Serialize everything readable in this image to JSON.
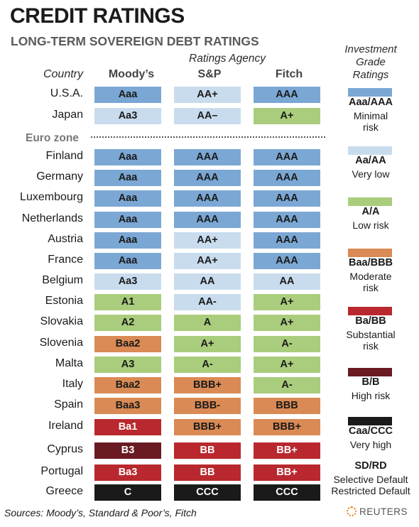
{
  "chart_data": {
    "type": "table",
    "title": "CREDIT RATINGS",
    "subtitle": "LONG-TERM SOVEREIGN DEBT RATINGS",
    "agency_header": "Ratings Agency",
    "country_header": "Country",
    "columns": [
      "Moody’s",
      "S&P",
      "Fitch"
    ],
    "group_label": "Euro zone",
    "rows": [
      {
        "country": "U.S.A.",
        "ratings": [
          "Aaa",
          "AA+",
          "AAA"
        ],
        "levels": [
          0,
          1,
          0
        ]
      },
      {
        "country": "Japan",
        "ratings": [
          "Aa3",
          "AA–",
          "A+"
        ],
        "levels": [
          1,
          1,
          2
        ]
      },
      {
        "country": "Finland",
        "ratings": [
          "Aaa",
          "AAA",
          "AAA"
        ],
        "levels": [
          0,
          0,
          0
        ]
      },
      {
        "country": "Germany",
        "ratings": [
          "Aaa",
          "AAA",
          "AAA"
        ],
        "levels": [
          0,
          0,
          0
        ]
      },
      {
        "country": "Luxembourg",
        "ratings": [
          "Aaa",
          "AAA",
          "AAA"
        ],
        "levels": [
          0,
          0,
          0
        ]
      },
      {
        "country": "Netherlands",
        "ratings": [
          "Aaa",
          "AAA",
          "AAA"
        ],
        "levels": [
          0,
          0,
          0
        ]
      },
      {
        "country": "Austria",
        "ratings": [
          "Aaa",
          "AA+",
          "AAA"
        ],
        "levels": [
          0,
          1,
          0
        ]
      },
      {
        "country": "France",
        "ratings": [
          "Aaa",
          "AA+",
          "AAA"
        ],
        "levels": [
          0,
          1,
          0
        ]
      },
      {
        "country": "Belgium",
        "ratings": [
          "Aa3",
          "AA",
          "AA"
        ],
        "levels": [
          1,
          1,
          1
        ]
      },
      {
        "country": "Estonia",
        "ratings": [
          "A1",
          "AA-",
          "A+"
        ],
        "levels": [
          2,
          1,
          2
        ]
      },
      {
        "country": "Slovakia",
        "ratings": [
          "A2",
          "A",
          "A+"
        ],
        "levels": [
          2,
          2,
          2
        ]
      },
      {
        "country": "Slovenia",
        "ratings": [
          "Baa2",
          "A+",
          "A-"
        ],
        "levels": [
          3,
          2,
          2
        ]
      },
      {
        "country": "Malta",
        "ratings": [
          "A3",
          "A-",
          "A+"
        ],
        "levels": [
          2,
          2,
          2
        ]
      },
      {
        "country": "Italy",
        "ratings": [
          "Baa2",
          "BBB+",
          "A-"
        ],
        "levels": [
          3,
          3,
          2
        ]
      },
      {
        "country": "Spain",
        "ratings": [
          "Baa3",
          "BBB-",
          "BBB"
        ],
        "levels": [
          3,
          3,
          3
        ]
      },
      {
        "country": "Ireland",
        "ratings": [
          "Ba1",
          "BBB+",
          "BBB+"
        ],
        "levels": [
          4,
          3,
          3
        ]
      },
      {
        "country": "Cyprus",
        "ratings": [
          "B3",
          "BB",
          "BB+"
        ],
        "levels": [
          5,
          4,
          4
        ]
      },
      {
        "country": "Portugal",
        "ratings": [
          "Ba3",
          "BB",
          "BB+"
        ],
        "levels": [
          4,
          4,
          4
        ]
      },
      {
        "country": "Greece",
        "ratings": [
          "C",
          "CCC",
          "CCC"
        ],
        "levels": [
          6,
          6,
          6
        ]
      }
    ],
    "legend_title": [
      "Investment",
      "Grade",
      "Ratings"
    ],
    "legend": [
      {
        "code": "Aaa/AAA",
        "desc": [
          "Minimal",
          "risk"
        ],
        "color": "#7ba7d4",
        "text": "#1a1a1a"
      },
      {
        "code": "Aa/AA",
        "desc": [
          "Very low"
        ],
        "color": "#c8dcee",
        "text": "#1a1a1a"
      },
      {
        "code": "A/A",
        "desc": [
          "Low risk"
        ],
        "color": "#a9cd7c",
        "text": "#1a1a1a"
      },
      {
        "code": "Baa/BBB",
        "desc": [
          "Moderate",
          "risk"
        ],
        "color": "#da8a54",
        "text": "#1a1a1a"
      },
      {
        "code": "Ba/BB",
        "desc": [
          "Substantial",
          "risk"
        ],
        "color": "#b9282e",
        "text": "#ffffff"
      },
      {
        "code": "B/B",
        "desc": [
          "High risk"
        ],
        "color": "#6a1a22",
        "text": "#ffffff"
      },
      {
        "code": "Caa/CCC",
        "desc": [
          "Very high"
        ],
        "color": "#1a1a1a",
        "text": "#ffffff"
      },
      {
        "code": "SD/RD",
        "desc": [
          "Selective Default",
          "Restricted Default"
        ],
        "color": null,
        "text": "#1a1a1a"
      }
    ],
    "sources": "Sources: Moody’s, Standard & Poor’s, Fitch",
    "credit": "REUTERS"
  }
}
